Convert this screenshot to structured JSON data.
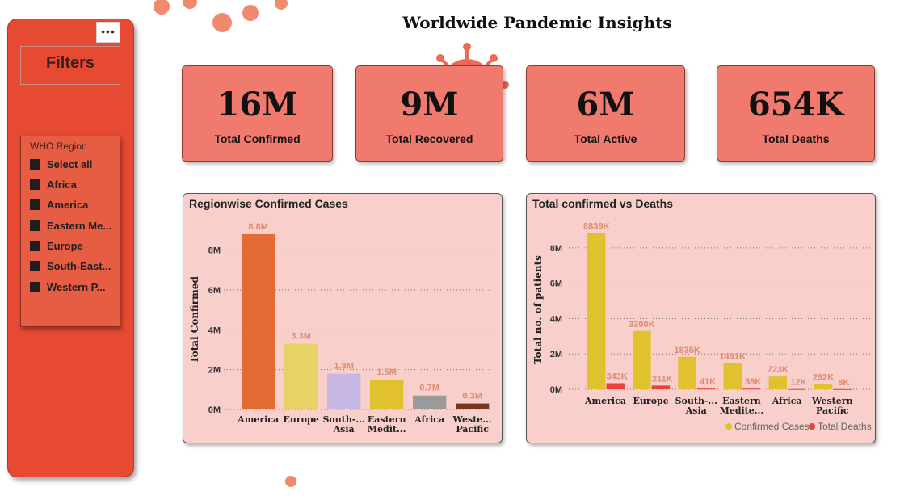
{
  "filters": {
    "title": "Filters",
    "more_label": "•••",
    "slicer_title": "WHO Region",
    "items": [
      {
        "label": "Select all"
      },
      {
        "label": "Africa"
      },
      {
        "label": "America"
      },
      {
        "label": "Eastern Me..."
      },
      {
        "label": "Europe"
      },
      {
        "label": "South-East..."
      },
      {
        "label": "Western P..."
      }
    ]
  },
  "page_title": "Worldwide Pandemic Insights",
  "kpis": [
    {
      "value": "16M",
      "label": "Total Confirmed"
    },
    {
      "value": "9M",
      "label": "Total Recovered"
    },
    {
      "value": "6M",
      "label": "Total Active"
    },
    {
      "value": "654K",
      "label": "Total Deaths"
    }
  ],
  "colors": {
    "panel_bg": "#e64a33",
    "kpi_bg": "#f07a6d",
    "chart_bg": "#f8cfcb",
    "confirmed": "#e2c12f",
    "deaths": "#e8423a"
  },
  "chart_data": [
    {
      "type": "bar",
      "title": "Regionwise Confirmed Cases",
      "xlabel": "",
      "ylabel": "Total Confirmed",
      "ylim": [
        0,
        9000000
      ],
      "yticks": [
        {
          "value": 0,
          "label": "0M"
        },
        {
          "value": 2000000,
          "label": "2M"
        },
        {
          "value": 4000000,
          "label": "4M"
        },
        {
          "value": 6000000,
          "label": "6M"
        },
        {
          "value": 8000000,
          "label": "8M"
        }
      ],
      "grid": true,
      "categories": [
        [
          "America"
        ],
        [
          "Europe"
        ],
        [
          "South-...",
          "Asia"
        ],
        [
          "Eastern",
          "Medit..."
        ],
        [
          "Africa"
        ],
        [
          "Weste...",
          "Pacific"
        ]
      ],
      "values": [
        8800000,
        3300000,
        1800000,
        1500000,
        700000,
        300000
      ],
      "data_labels": [
        "8.8M",
        "3.3M",
        "1.8M",
        "1.5M",
        "0.7M",
        "0.3M"
      ],
      "colors": [
        "#e56b34",
        "#e8d264",
        "#c7b8e3",
        "#e2c12f",
        "#9a9a9a",
        "#7a3520"
      ]
    },
    {
      "type": "bar",
      "title": "Total confirmed vs Deaths",
      "xlabel": "",
      "ylabel": "Total no. of patients",
      "ylim": [
        0,
        9000000
      ],
      "yticks": [
        {
          "value": 0,
          "label": "0M"
        },
        {
          "value": 2000000,
          "label": "2M"
        },
        {
          "value": 4000000,
          "label": "4M"
        },
        {
          "value": 6000000,
          "label": "6M"
        },
        {
          "value": 8000000,
          "label": "8M"
        }
      ],
      "grid": true,
      "legend": "bottom-right",
      "categories": [
        [
          "America"
        ],
        [
          "Europe"
        ],
        [
          "South-...",
          "Asia"
        ],
        [
          "Eastern",
          "Medite..."
        ],
        [
          "Africa"
        ],
        [
          "Western",
          "Pacific"
        ]
      ],
      "series": [
        {
          "name": "Confirmed Cases",
          "values": [
            8839000,
            3300000,
            1835000,
            1491000,
            723000,
            292000
          ],
          "labels": [
            "8839K",
            "3300K",
            "1835K",
            "1491K",
            "723K",
            "292K"
          ],
          "color": "#e2c12f"
        },
        {
          "name": "Total Deaths",
          "values": [
            343000,
            211000,
            41000,
            38000,
            12000,
            8000
          ],
          "labels": [
            "343K",
            "211K",
            "41K",
            "38K",
            "12K",
            "8K"
          ],
          "color": "#e8423a"
        }
      ]
    }
  ]
}
